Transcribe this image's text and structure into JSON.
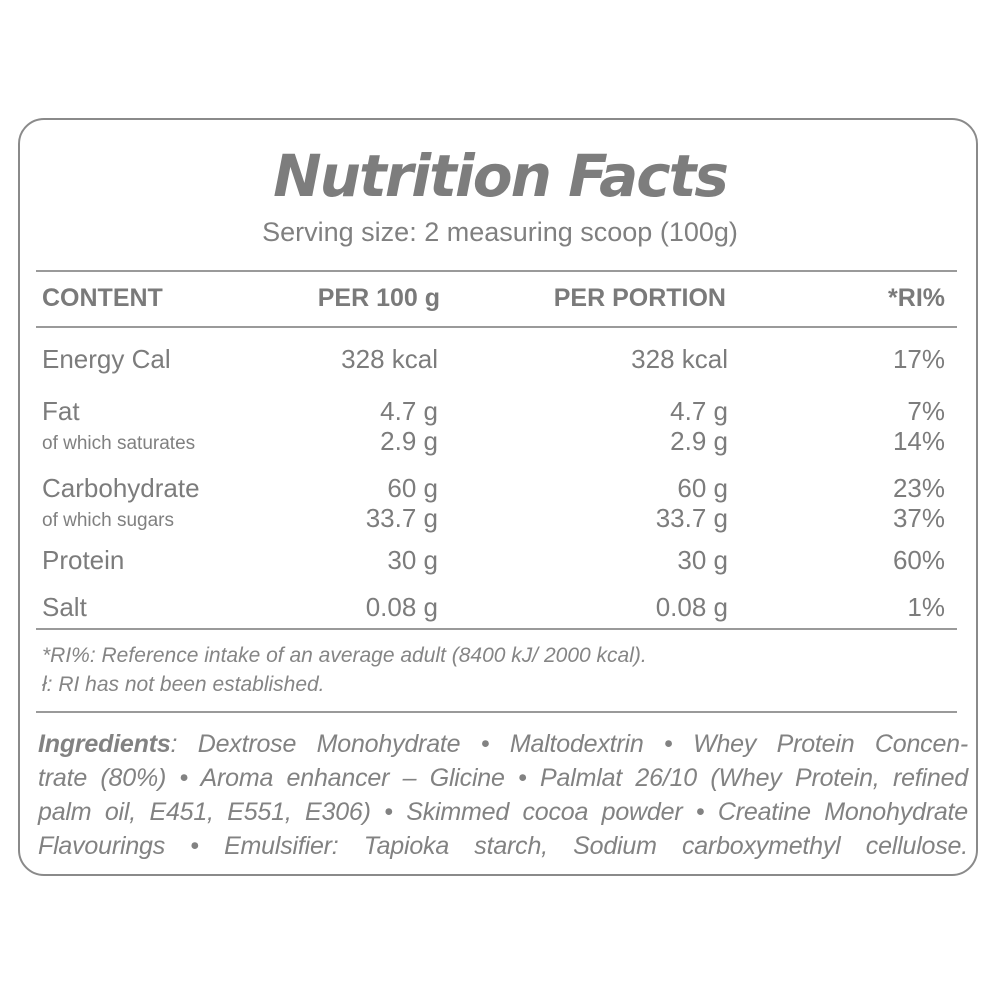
{
  "title": "Nutrition Facts",
  "serving": "Serving size: 2 measuring scoop (100g)",
  "header": {
    "content": "CONTENT",
    "per100": "PER 100 g",
    "perportion": "PER PORTION",
    "ri": "*RI%"
  },
  "rows": [
    {
      "name": "Energy Cal",
      "per100": "328 kcal",
      "portion": "328 kcal",
      "ri": "17%"
    },
    {
      "name": "Fat",
      "per100": "4.7 g",
      "portion": "4.7 g",
      "ri": "7%"
    },
    {
      "name": "of which saturates",
      "per100": "2.9 g",
      "portion": "2.9 g",
      "ri": "14%"
    },
    {
      "name": "Carbohydrate",
      "per100": "60 g",
      "portion": "60 g",
      "ri": "23%"
    },
    {
      "name": "of which sugars",
      "per100": "33.7 g",
      "portion": "33.7 g",
      "ri": "37%"
    },
    {
      "name": "Protein",
      "per100": "30 g",
      "portion": "30 g",
      "ri": "60%"
    },
    {
      "name": "Salt",
      "per100": "0.08 g",
      "portion": "0.08 g",
      "ri": "1%"
    }
  ],
  "notes": [
    "*RI%: Reference intake of an average adult (8400 kJ/ 2000 kcal).",
    "ł: RI has not been established."
  ],
  "ingredients": {
    "label": "Ingredients",
    "lines": [
      ": Dextrose Monohydrate • Maltodextrin • Whey Protein Concen-",
      "trate (80%) • Aroma enhancer – Glicine • Palmlat 26/10 (Whey Protein, refined",
      "palm oil, E451, E551, E306) • Skimmed cocoa powder • Creatine Monohydrate",
      "Flavourings • Emulsifier: Tapioka starch, Sodium carboxymethyl cellulose."
    ]
  }
}
